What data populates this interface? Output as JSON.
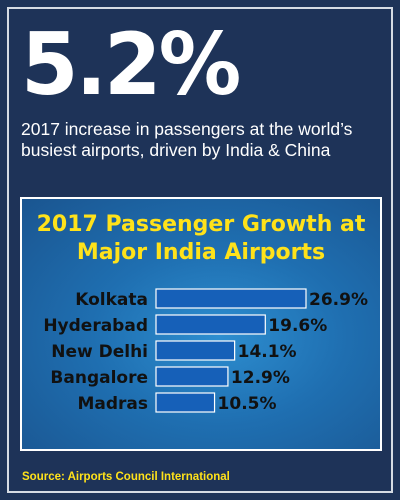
{
  "headline": "5.2%",
  "subhead": "2017 increase in passengers at the world’s busiest airports, driven by India & China",
  "source": "Source: Airports Council International",
  "colors": {
    "background": "#1e3358",
    "panel": "#1f6fb1",
    "bar": "#1660b8",
    "title": "#ffe21a",
    "label": "#111111"
  },
  "chart_data": {
    "type": "bar",
    "orientation": "horizontal",
    "title_lines": [
      "2017 Passenger Growth at",
      "Major India Airports"
    ],
    "categories": [
      "Kolkata",
      "Hyderabad",
      "New Delhi",
      "Bangalore",
      "Madras"
    ],
    "values": [
      26.9,
      19.6,
      14.1,
      12.9,
      10.5
    ],
    "value_labels": [
      "26.9%",
      "19.6%",
      "14.1%",
      "12.9%",
      "10.5%"
    ],
    "unit": "%",
    "xlim": [
      0,
      26.9
    ],
    "grid": false,
    "legend": "none"
  }
}
